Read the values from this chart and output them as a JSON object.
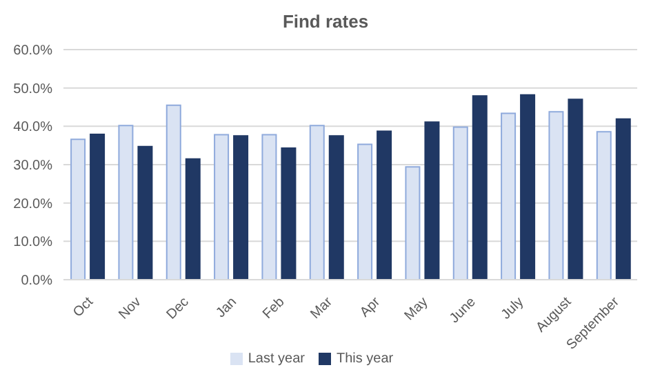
{
  "chart_data": {
    "type": "bar",
    "title": "Find rates",
    "categories": [
      "Oct",
      "Nov",
      "Dec",
      "Jan",
      "Feb",
      "Mar",
      "Apr",
      "May",
      "June",
      "July",
      "August",
      "September"
    ],
    "series": [
      {
        "name": "Last year",
        "color": "#dae3f3",
        "values": [
          36.6,
          40.2,
          45.5,
          37.8,
          37.8,
          40.2,
          35.3,
          29.4,
          39.8,
          43.4,
          43.8,
          38.6
        ]
      },
      {
        "name": "This year",
        "color": "#203864",
        "values": [
          37.9,
          34.7,
          31.5,
          37.5,
          34.3,
          37.5,
          38.7,
          41.1,
          47.9,
          48.2,
          47.0,
          41.9
        ]
      }
    ],
    "ylim": [
      0,
      60
    ],
    "yticks": [
      {
        "value": 0,
        "label": "0.0%"
      },
      {
        "value": 10,
        "label": "10.0%"
      },
      {
        "value": 20,
        "label": "20.0%"
      },
      {
        "value": 30,
        "label": "30.0%"
      },
      {
        "value": 40,
        "label": "40.0%"
      },
      {
        "value": 50,
        "label": "50.0%"
      },
      {
        "value": 60,
        "label": "60.0%"
      }
    ],
    "grid": "y",
    "legend": "bottom"
  }
}
